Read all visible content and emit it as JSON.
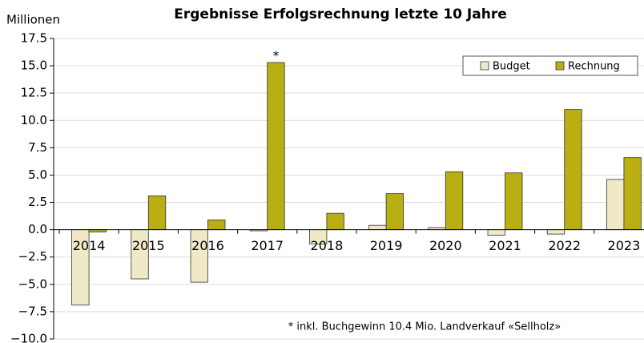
{
  "chart_data": {
    "type": "bar",
    "title": "Ergebnisse Erfolgsrechnung letzte 10 Jahre",
    "y_label": "Millionen",
    "categories": [
      "2014",
      "2015",
      "2016",
      "2017",
      "2018",
      "2019",
      "2020",
      "2021",
      "2022",
      "2023"
    ],
    "series": [
      {
        "name": "Budget",
        "color": "#f0e9c5",
        "values": [
          -6.9,
          -4.5,
          -4.8,
          -0.1,
          -1.3,
          0.4,
          0.2,
          -0.5,
          -0.4,
          4.6
        ]
      },
      {
        "name": "Rechnung",
        "color": "#b9ae12",
        "values": [
          -0.2,
          3.1,
          0.9,
          15.3,
          1.5,
          3.3,
          5.3,
          5.2,
          11.0,
          6.6
        ]
      }
    ],
    "ylim": [
      -10,
      17.5
    ],
    "yticks": [
      {
        "value": -10,
        "label": "−10.0"
      },
      {
        "value": -7.5,
        "label": "−7.5"
      },
      {
        "value": -5,
        "label": "−5.0"
      },
      {
        "value": -2.5,
        "label": "−2.5"
      },
      {
        "value": 0,
        "label": "0.0"
      },
      {
        "value": 2.5,
        "label": "2.5"
      },
      {
        "value": 5,
        "label": "5.0"
      },
      {
        "value": 7.5,
        "label": "7.5"
      },
      {
        "value": 10,
        "label": "10.0"
      },
      {
        "value": 12.5,
        "label": "12.5"
      },
      {
        "value": 15,
        "label": "15.0"
      },
      17.5
    ],
    "grid": true,
    "legend": "top-right",
    "annotations": [
      "*",
      "* inkl. Buchgewinn 10.4 Mio. Landverkauf «Sellholz»"
    ]
  }
}
